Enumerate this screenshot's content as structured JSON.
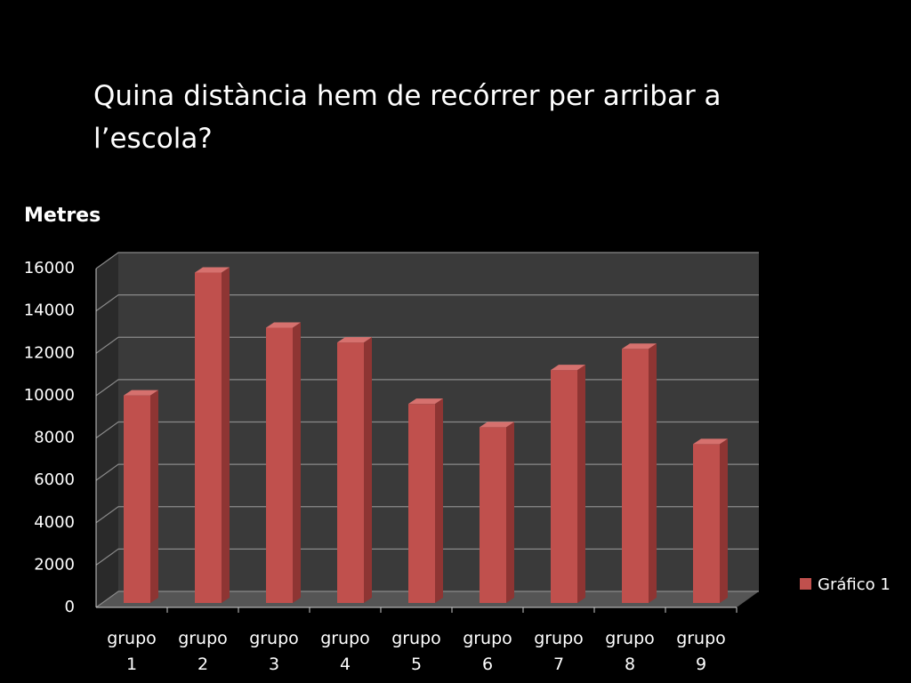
{
  "chart_data": {
    "type": "bar",
    "title": "Quina distància hem de recórrer per arribar a l’escola?",
    "y_label": "Metres",
    "categories": [
      "grupo 1",
      "grupo 2",
      "grupo 3",
      "grupo 4",
      "grupo 5",
      "grupo 6",
      "grupo 7",
      "grupo 8",
      "grupo 9"
    ],
    "series": [
      {
        "name": "Gráfico 1",
        "color": "#c0504d",
        "values": [
          9800,
          15600,
          13000,
          12300,
          9400,
          8300,
          11000,
          12000,
          7500
        ]
      }
    ],
    "ylim": [
      0,
      16000
    ],
    "yticks": [
      0,
      2000,
      4000,
      6000,
      8000,
      10000,
      12000,
      14000,
      16000
    ],
    "grid": true,
    "legend": "right"
  }
}
